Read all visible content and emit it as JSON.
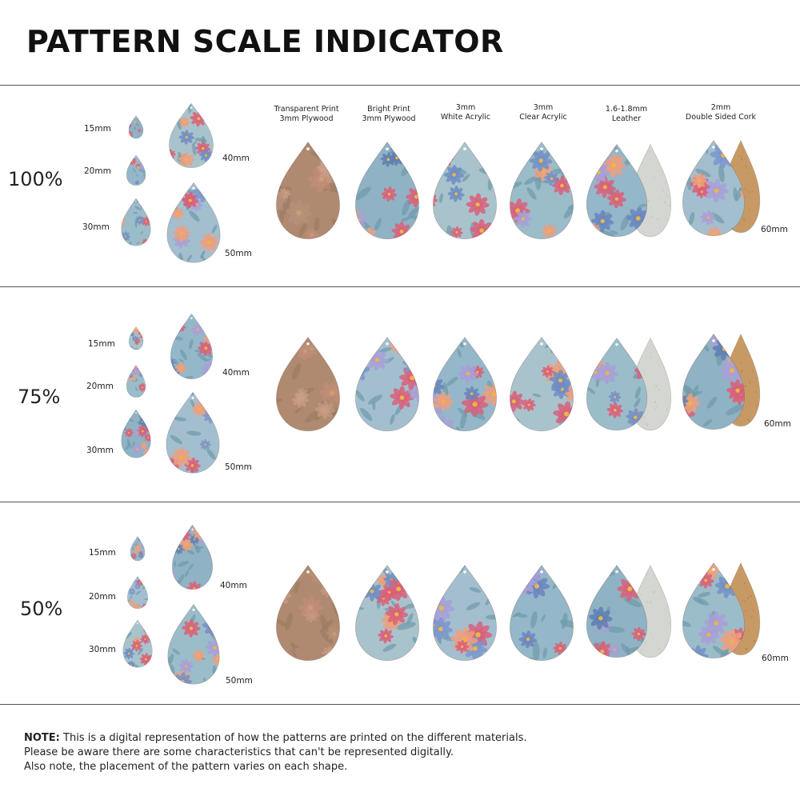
{
  "title": "PATTERN SCALE INDICATOR",
  "colors": {
    "petal_pink": "#d9607a",
    "petal_peach": "#ef9f7e",
    "leaf_blue": "#7fa7bd",
    "bloom_lilac": "#a8a0d8",
    "plywood": "#b08a70",
    "leather_back": "#d4d6d2",
    "cork": "#c79a65"
  },
  "materials": [
    {
      "line1": "Transparent Print",
      "line2": "3mm Plywood"
    },
    {
      "line1": "Bright Print",
      "line2": "3mm Plywood"
    },
    {
      "line1": "3mm",
      "line2": "White Acrylic"
    },
    {
      "line1": "3mm",
      "line2": "Clear Acrylic"
    },
    {
      "line1": "1.6-1.8mm",
      "line2": "Leather"
    },
    {
      "line1": "2mm",
      "line2": "Double Sided Cork"
    }
  ],
  "rows": [
    {
      "scale": "100%",
      "sizes": [
        "15mm",
        "20mm",
        "30mm",
        "40mm",
        "50mm"
      ],
      "material_size": "60mm"
    },
    {
      "scale": "75%",
      "sizes": [
        "15mm",
        "20mm",
        "30mm",
        "40mm",
        "50mm"
      ],
      "material_size": "60mm"
    },
    {
      "scale": "50%",
      "sizes": [
        "15mm",
        "20mm",
        "30mm",
        "40mm",
        "50mm"
      ],
      "material_size": "60mm"
    }
  ],
  "note": {
    "label": "NOTE:",
    "line1": "This is a digital representation of how the patterns are printed on the different materials.",
    "line2": "Please be aware there are some characteristics that can't be represented digitally.",
    "line3": "Also note, the placement of the pattern varies on each shape."
  }
}
